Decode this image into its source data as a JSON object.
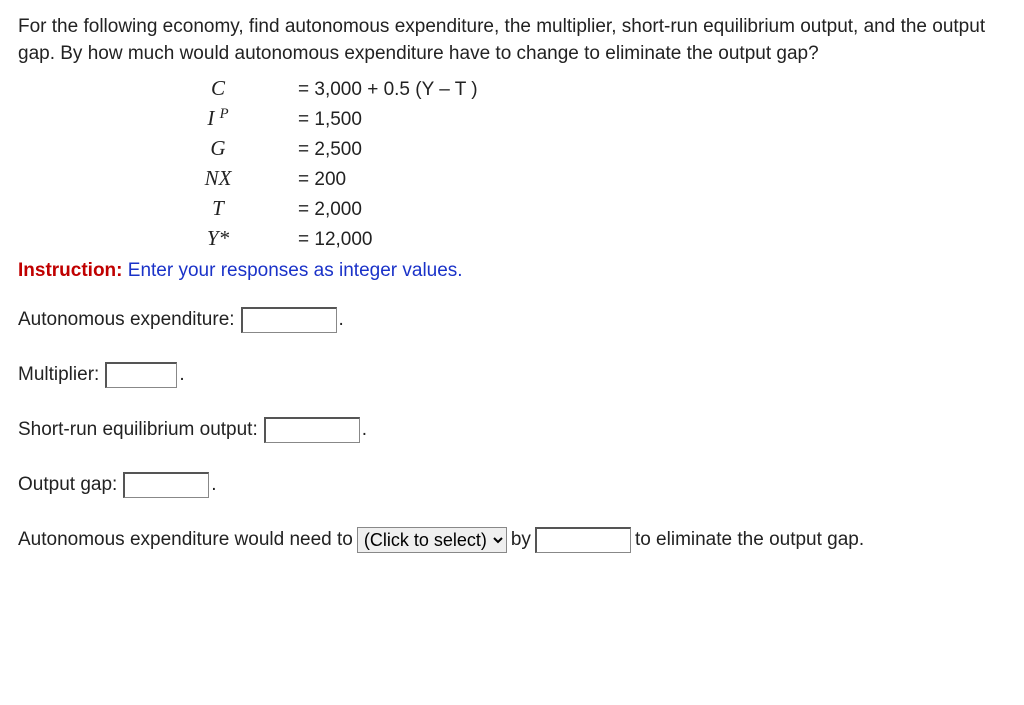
{
  "question": "For the following economy, find autonomous expenditure, the multiplier, short-run equilibrium output, and the output gap. By how much would autonomous expenditure have to change to eliminate the output gap?",
  "equations": {
    "r0": {
      "sym_html": "C",
      "val": "= 3,000 + 0.5 (Y – T )"
    },
    "r1": {
      "sym_html": "I <span class=\"sup nosup\">P</span>",
      "val": "= 1,500"
    },
    "r2": {
      "sym_html": "G",
      "val": "= 2,500"
    },
    "r3": {
      "sym_html": "NX",
      "val": "= 200"
    },
    "r4": {
      "sym_html": "T",
      "val": "= 2,000"
    },
    "r5": {
      "sym_html": "Y*",
      "val": "= 12,000"
    }
  },
  "instruction": {
    "label": "Instruction:",
    "text": "Enter your responses as integer values."
  },
  "fields": {
    "ae": "Autonomous expenditure:",
    "mult": "Multiplier:",
    "sreo": "Short-run equilibrium output:",
    "gap": "Output gap:"
  },
  "final": {
    "pre": "Autonomous expenditure would need to",
    "select_placeholder": "(Click to select)",
    "mid": "by",
    "post": "to eliminate the output gap."
  }
}
